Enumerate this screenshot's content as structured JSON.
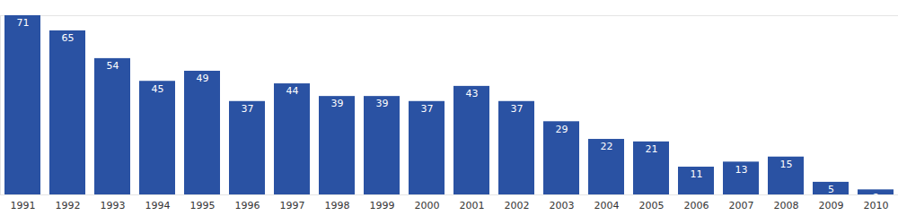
{
  "chart_data": {
    "type": "bar",
    "categories": [
      "1991",
      "1992",
      "1993",
      "1994",
      "1995",
      "1996",
      "1997",
      "1998",
      "1999",
      "2000",
      "2001",
      "2002",
      "2003",
      "2004",
      "2005",
      "2006",
      "2007",
      "2008",
      "2009",
      "2010"
    ],
    "values": [
      71,
      65,
      54,
      45,
      49,
      37,
      44,
      39,
      39,
      37,
      43,
      37,
      29,
      22,
      21,
      11,
      13,
      15,
      5,
      2
    ],
    "color": "#2a52a3",
    "ylim": [
      0,
      71
    ],
    "yticks": [],
    "grid": false,
    "data_labels": true,
    "tick_labels": "x"
  }
}
